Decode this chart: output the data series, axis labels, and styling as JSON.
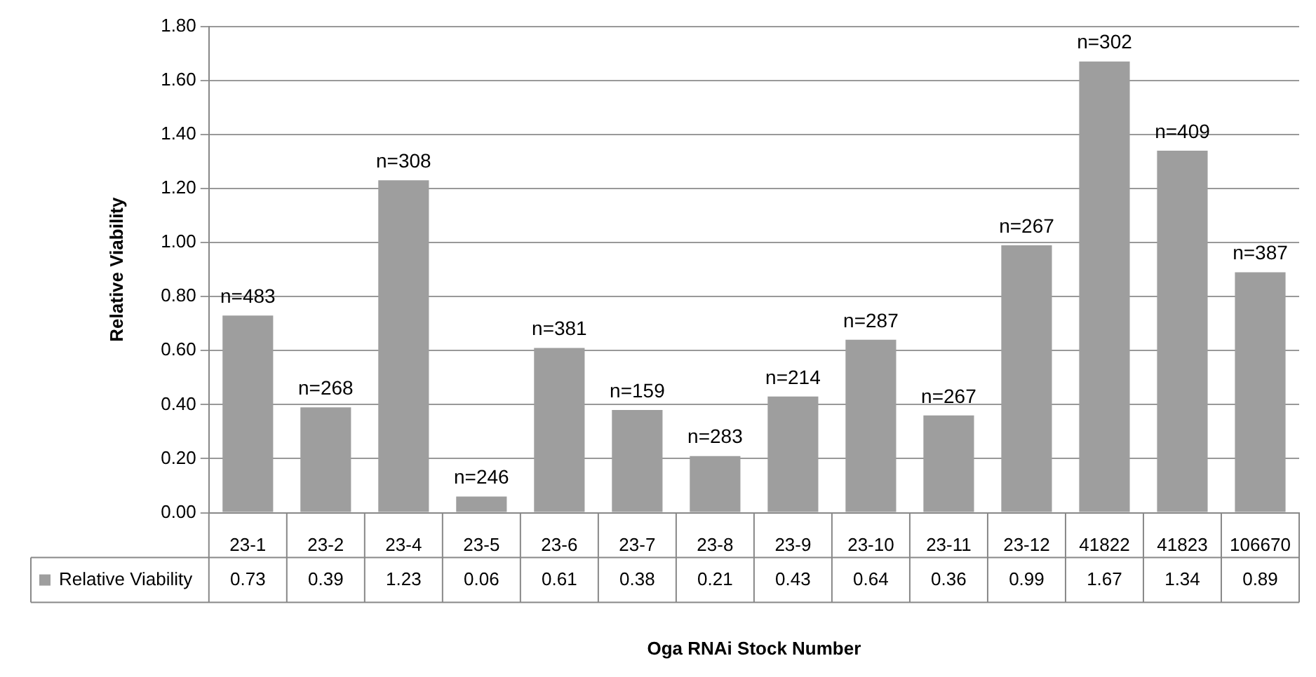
{
  "chart_data": {
    "type": "bar",
    "xlabel": "Oga RNAi Stock Number",
    "ylabel": "Relative Viability",
    "categories": [
      "23-1",
      "23-2",
      "23-4",
      "23-5",
      "23-6",
      "23-7",
      "23-8",
      "23-9",
      "23-10",
      "23-11",
      "23-12",
      "41822",
      "41823",
      "106670"
    ],
    "series": [
      {
        "name": "Relative Viability",
        "color": "#9e9e9e",
        "values": [
          0.73,
          0.39,
          1.23,
          0.06,
          0.61,
          0.38,
          0.21,
          0.43,
          0.64,
          0.36,
          0.99,
          1.67,
          1.34,
          0.89
        ]
      }
    ],
    "data_labels": true,
    "legend": "bottom",
    "grid": "y",
    "ylim": [
      0,
      1.8
    ],
    "yticks": [
      {
        "value": 0,
        "label": "0.00"
      },
      {
        "value": 0.2,
        "label": "0.20"
      },
      {
        "value": 0.4,
        "label": "0.40"
      },
      {
        "value": 0.6,
        "label": "0.60"
      },
      {
        "value": 0.8,
        "label": "0.80"
      },
      {
        "value": 1,
        "label": "1.00"
      },
      {
        "value": 1.2,
        "label": "1.20"
      },
      {
        "value": 1.4,
        "label": "1.40"
      },
      {
        "value": 1.6,
        "label": "1.60"
      },
      {
        "value": 1.8,
        "label": "1.80"
      }
    ],
    "annotations": [
      {
        "text": "n=483",
        "x": "23-1",
        "y": 0.73
      },
      {
        "text": "n=268",
        "x": "23-2",
        "y": 0.39
      },
      {
        "text": "n=308",
        "x": "23-4",
        "y": 1.23
      },
      {
        "text": "n=246",
        "x": "23-5",
        "y": 0.06
      },
      {
        "text": "n=381",
        "x": "23-6",
        "y": 0.61
      },
      {
        "text": "n=159",
        "x": "23-7",
        "y": 0.38
      },
      {
        "text": "n=283",
        "x": "23-8",
        "y": 0.21
      },
      {
        "text": "n=214",
        "x": "23-9",
        "y": 0.43
      },
      {
        "text": "n=287",
        "x": "23-10",
        "y": 0.64
      },
      {
        "text": "n=267",
        "x": "23-11",
        "y": 0.36
      },
      {
        "text": "n=267",
        "x": "23-12",
        "y": 0.99
      },
      {
        "text": "n=302",
        "x": "41822",
        "y": 1.67
      },
      {
        "text": "n=409",
        "x": "41823",
        "y": 1.34
      },
      {
        "text": "n=387",
        "x": "106670",
        "y": 0.89
      }
    ]
  }
}
